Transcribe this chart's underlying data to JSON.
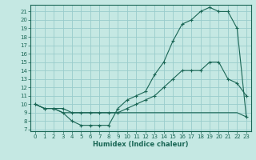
{
  "xlabel": "Humidex (Indice chaleur)",
  "bg_color": "#c5e8e3",
  "grid_color": "#99cccc",
  "line_color": "#1a6655",
  "xlim": [
    -0.5,
    23.5
  ],
  "ylim": [
    6.8,
    21.8
  ],
  "xticks": [
    0,
    1,
    2,
    3,
    4,
    5,
    6,
    7,
    8,
    9,
    10,
    11,
    12,
    13,
    14,
    15,
    16,
    17,
    18,
    19,
    20,
    21,
    22,
    23
  ],
  "yticks": [
    7,
    8,
    9,
    10,
    11,
    12,
    13,
    14,
    15,
    16,
    17,
    18,
    19,
    20,
    21
  ],
  "line1_x": [
    0,
    1,
    2,
    3,
    4,
    5,
    6,
    7,
    8,
    9,
    10,
    11,
    12,
    13,
    14,
    15,
    16,
    17,
    18,
    19,
    20,
    21,
    22,
    23
  ],
  "line1_y": [
    10,
    9.5,
    9.5,
    9,
    8,
    7.5,
    7.5,
    7.5,
    7.5,
    9.5,
    10.5,
    11,
    11.5,
    13.5,
    15,
    17.5,
    19.5,
    20,
    21,
    21.5,
    21,
    21,
    19,
    8.5
  ],
  "line2_x": [
    0,
    1,
    2,
    3,
    4,
    5,
    6,
    7,
    8,
    9,
    10,
    11,
    12,
    13,
    14,
    15,
    16,
    17,
    18,
    19,
    20,
    21,
    22,
    23
  ],
  "line2_y": [
    10,
    9.5,
    9.5,
    9.5,
    9,
    9,
    9,
    9,
    9,
    9,
    9.5,
    10,
    10.5,
    11,
    12,
    13,
    14,
    14,
    14,
    15,
    15,
    13,
    12.5,
    11
  ],
  "line3_x": [
    0,
    1,
    2,
    3,
    4,
    5,
    6,
    7,
    8,
    9,
    10,
    11,
    12,
    13,
    14,
    15,
    16,
    17,
    18,
    19,
    20,
    21,
    22,
    23
  ],
  "line3_y": [
    10,
    9.5,
    9.5,
    9,
    9,
    9,
    9,
    9,
    9,
    9,
    9,
    9,
    9,
    9,
    9,
    9,
    9,
    9,
    9,
    9,
    9,
    9,
    9,
    8.5
  ]
}
